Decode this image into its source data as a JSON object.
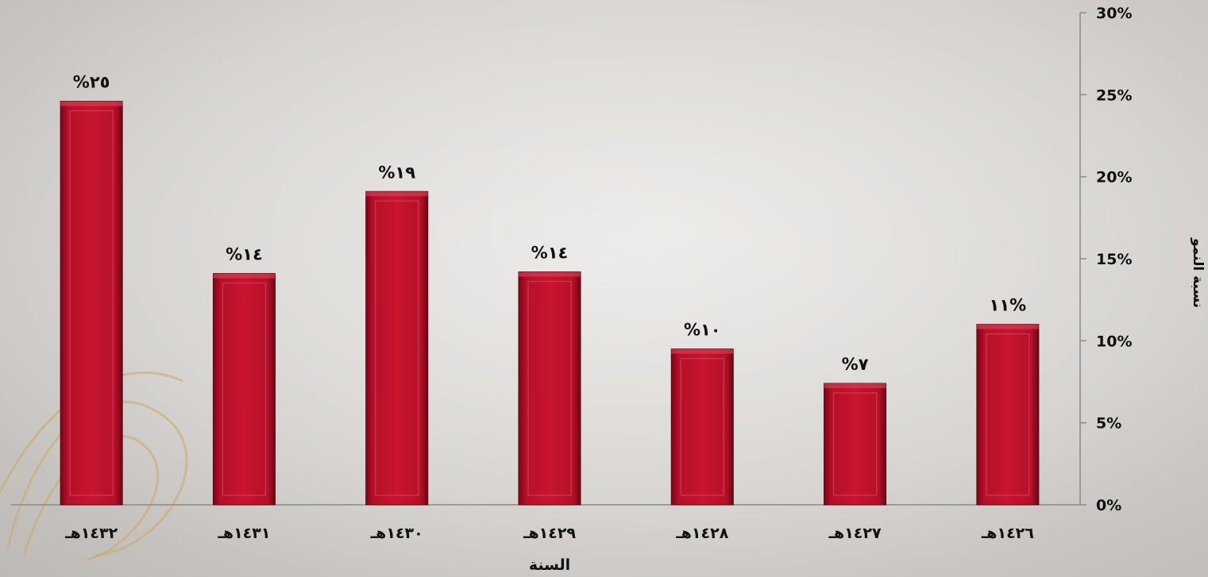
{
  "chart_data": {
    "type": "bar",
    "categories": [
      "١٤٣٢هـ",
      "١٤٣١هـ",
      "١٤٣٠هـ",
      "١٤٢٩هـ",
      "١٤٢٨هـ",
      "١٤٢٧هـ",
      "١٤٢٦هـ"
    ],
    "values": [
      24.6,
      14.1,
      19.1,
      14.2,
      9.5,
      7.4,
      11.0
    ],
    "data_labels": [
      "%٢٥",
      "%١٤",
      "%١٩",
      "%١٤",
      "%١٠",
      "%٧",
      "١١%"
    ],
    "title": "",
    "xlabel": "السنة",
    "ylabel": "نسبة النمو",
    "ylim": [
      0,
      30
    ],
    "yticks": [
      "0%",
      "5%",
      "10%",
      "15%",
      "20%",
      "25%",
      "30%"
    ],
    "y_axis_position": "right",
    "grid": false,
    "bar_color": "#b5102a"
  }
}
